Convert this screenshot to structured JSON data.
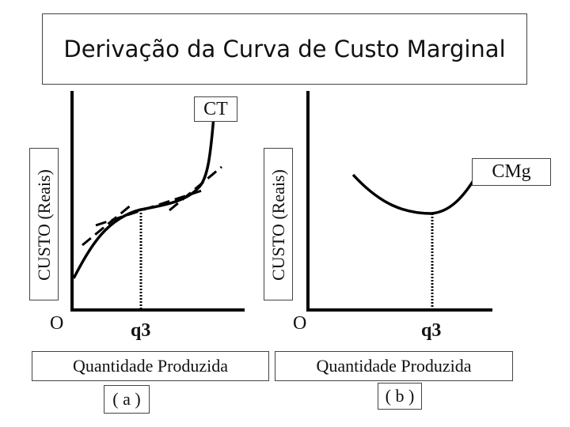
{
  "title": "Derivação da Curva de Custo Marginal",
  "panel_a": {
    "curve_label": "CT",
    "y_axis_label": "CUSTO (Reais)",
    "origin_label": "O",
    "q_label": "q3",
    "x_axis_label": "Quantidade Produzida",
    "panel_label": "( a )"
  },
  "panel_b": {
    "curve_label": "CMg",
    "y_axis_label": "CUSTO (Reais)",
    "origin_label": "O",
    "q_label": "q3",
    "x_axis_label": "Quantidade Produzida",
    "panel_label": "( b )"
  },
  "colors": {
    "line": "#000000",
    "border": "#444444"
  }
}
